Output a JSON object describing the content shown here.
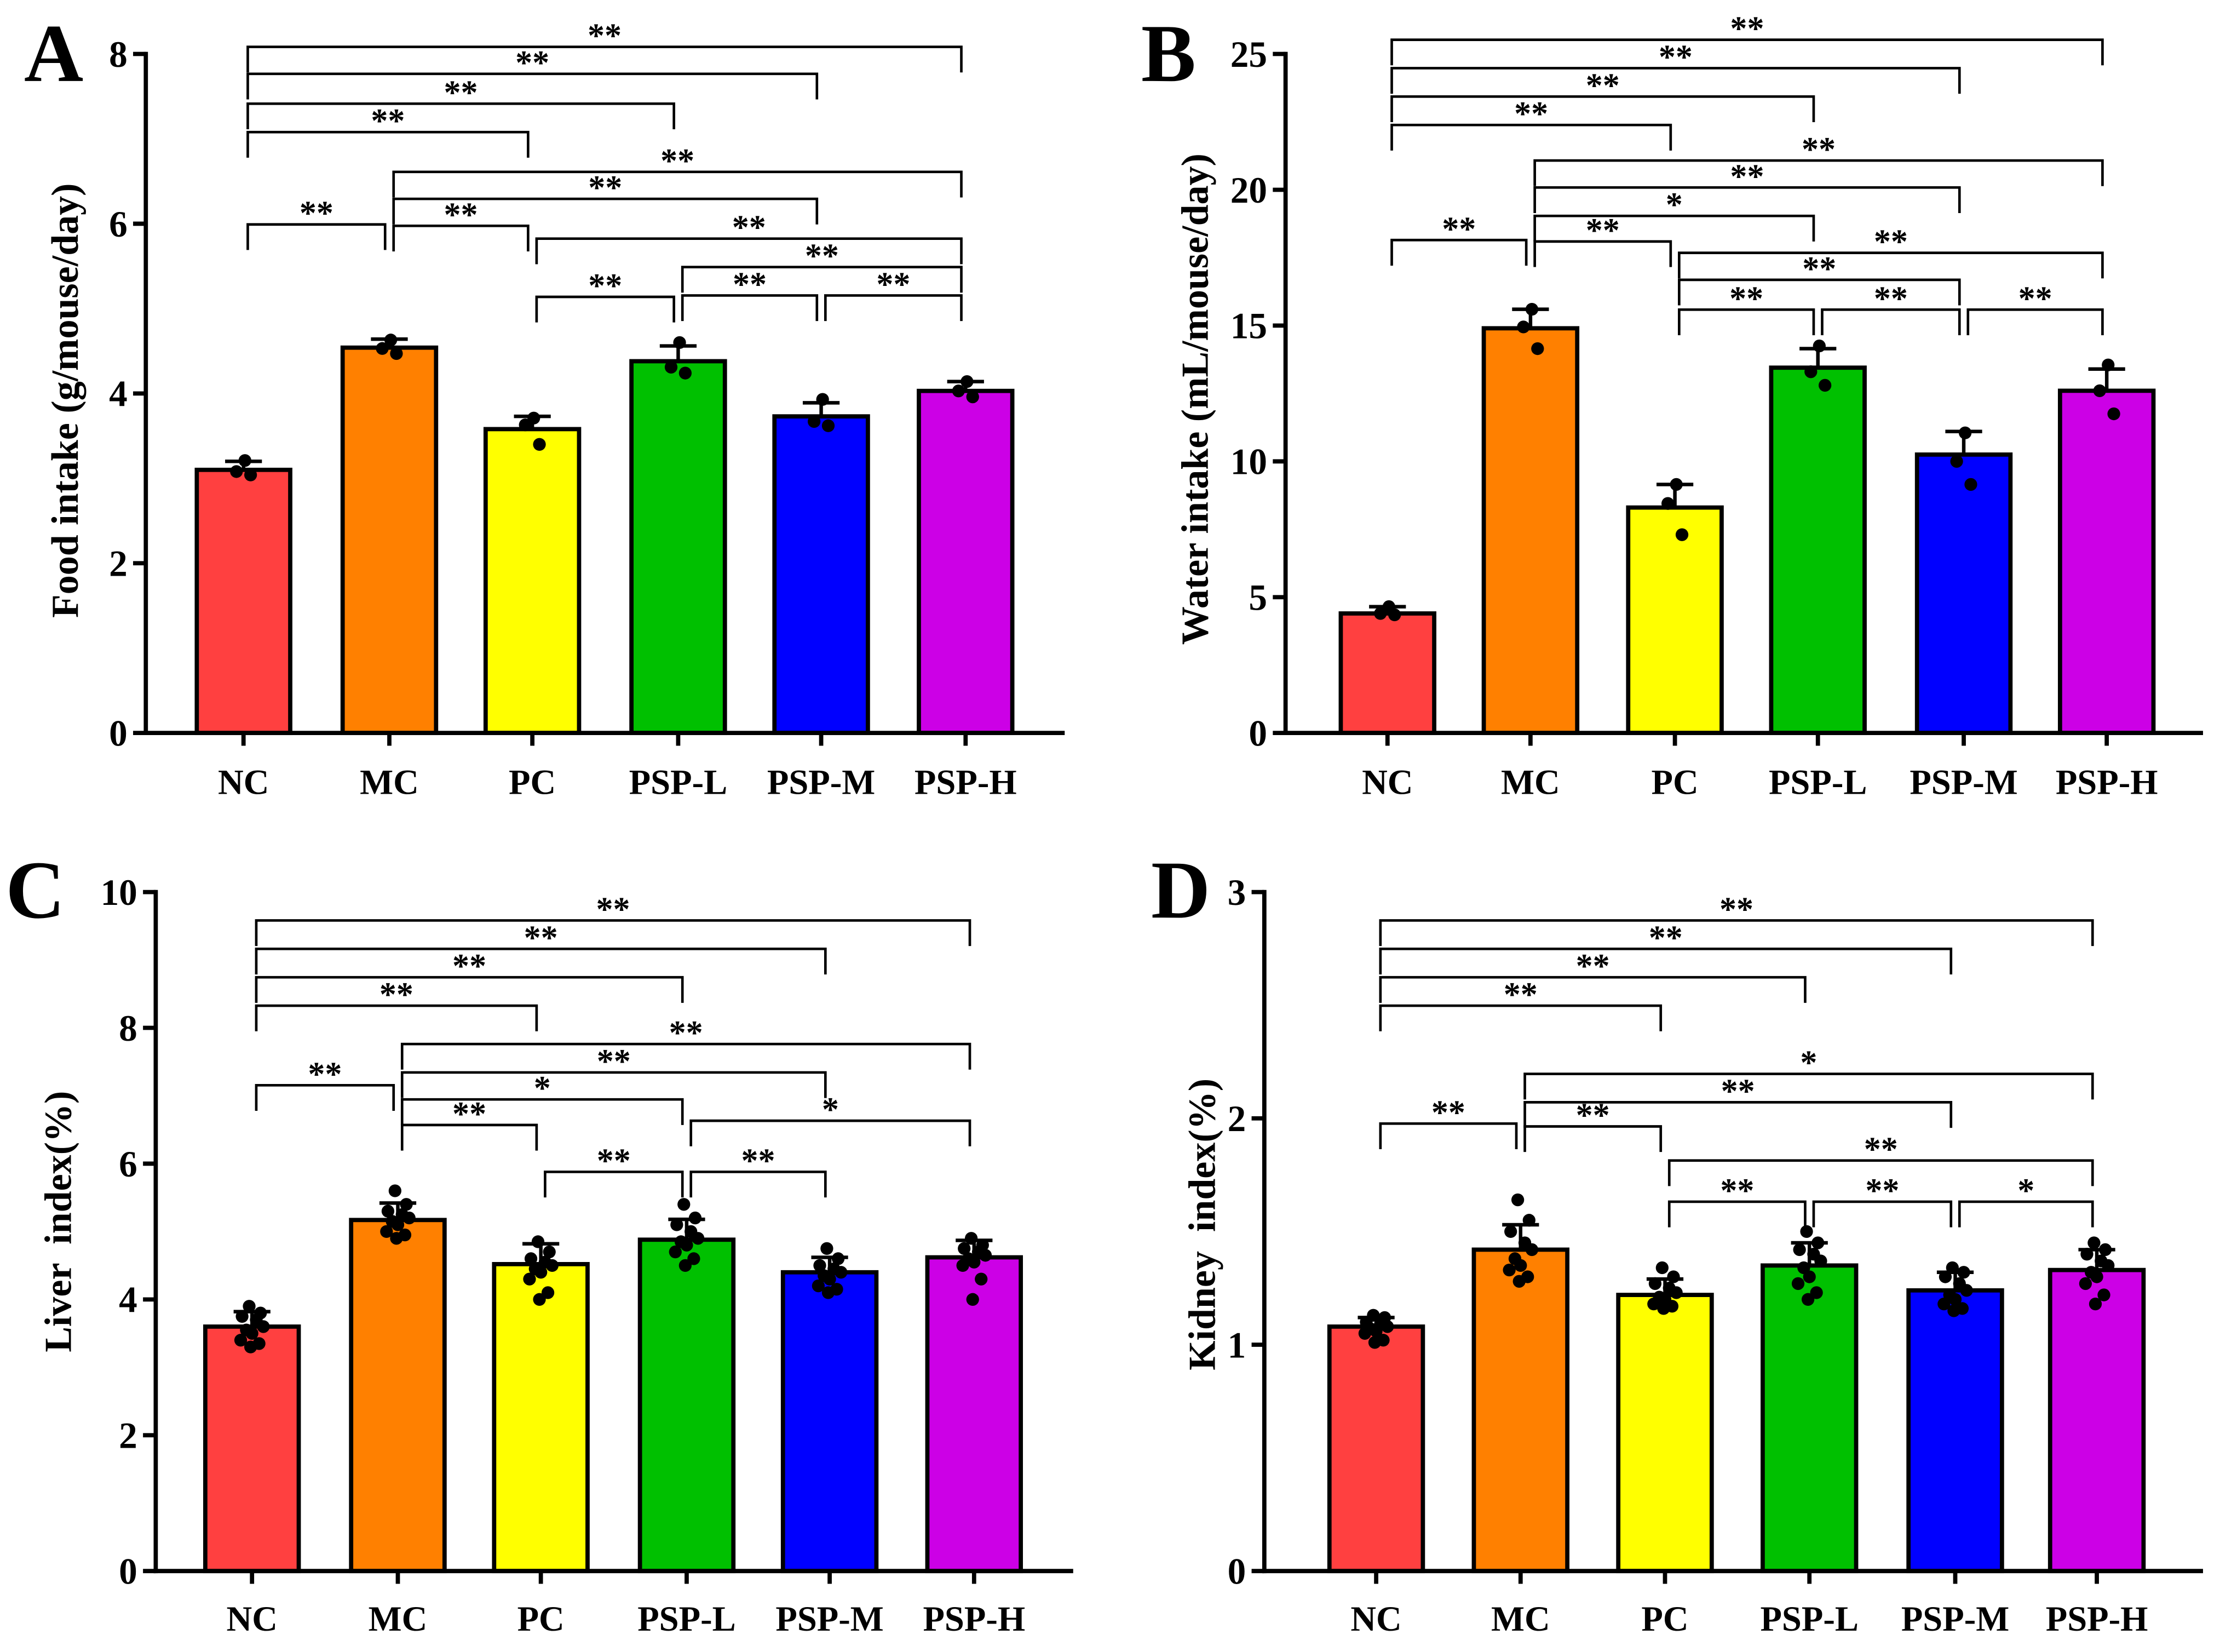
{
  "bar_colors": {
    "NC": "#ff4040",
    "MC": "#ff8000",
    "PC": "#ffff00",
    "PSP-L": "#00c000",
    "PSP-M": "#0000ff",
    "PSP-H": "#cc00e6"
  },
  "chart_data": [
    {
      "panel": "A",
      "type": "bar",
      "ylabel": "Food intake (g/mouse/day)",
      "categories": [
        "NC",
        "MC",
        "PC",
        "PSP-L",
        "PSP-M",
        "PSP-H"
      ],
      "values": [
        3.1,
        4.54,
        3.58,
        4.38,
        3.73,
        4.03
      ],
      "errors": [
        0.1,
        0.1,
        0.15,
        0.18,
        0.16,
        0.11
      ],
      "points": [
        [
          3.21,
          3.08,
          3.04
        ],
        [
          4.63,
          4.53,
          4.47
        ],
        [
          3.71,
          3.63,
          3.4
        ],
        [
          4.6,
          4.31,
          4.24
        ],
        [
          3.93,
          3.67,
          3.62
        ],
        [
          4.14,
          4.03,
          3.96
        ]
      ],
      "ylim": [
        0,
        8
      ],
      "yticks": [
        0,
        2,
        4,
        6,
        8
      ],
      "significance": [
        {
          "from": "NC",
          "to": "PSP-H",
          "label": "**"
        },
        {
          "from": "NC",
          "to": "PSP-M",
          "label": "**"
        },
        {
          "from": "NC",
          "to": "PSP-L",
          "label": "**"
        },
        {
          "from": "NC",
          "to": "PC",
          "label": "**"
        },
        {
          "from": "NC",
          "to": "MC",
          "label": "**"
        },
        {
          "from": "MC",
          "to": "PSP-H",
          "label": "**"
        },
        {
          "from": "MC",
          "to": "PSP-M",
          "label": "**"
        },
        {
          "from": "MC",
          "to": "PC",
          "label": "**"
        },
        {
          "from": "PC",
          "to": "PSP-H",
          "label": "**"
        },
        {
          "from": "PC",
          "to": "PSP-L",
          "label": "**"
        },
        {
          "from": "PSP-L",
          "to": "PSP-H",
          "label": "**"
        },
        {
          "from": "PSP-L",
          "to": "PSP-M",
          "label": "**"
        },
        {
          "from": "PSP-M",
          "to": "PSP-H",
          "label": "**"
        }
      ]
    },
    {
      "panel": "B",
      "type": "bar",
      "ylabel": "Water intake (mL/mouse/day)",
      "categories": [
        "NC",
        "MC",
        "PC",
        "PSP-L",
        "PSP-M",
        "PSP-H"
      ],
      "values": [
        4.4,
        14.9,
        8.3,
        13.45,
        10.25,
        12.6
      ],
      "errors": [
        0.25,
        0.7,
        0.85,
        0.7,
        0.85,
        0.8
      ],
      "points": [
        [
          4.65,
          4.4,
          4.35
        ],
        [
          15.6,
          14.95,
          14.15
        ],
        [
          9.15,
          8.45,
          7.3
        ],
        [
          14.25,
          13.3,
          12.8
        ],
        [
          11.05,
          10.0,
          9.15
        ],
        [
          13.55,
          12.6,
          11.75
        ]
      ],
      "ylim": [
        0,
        25
      ],
      "yticks": [
        0,
        5,
        10,
        15,
        20,
        25
      ],
      "significance": [
        {
          "from": "NC",
          "to": "PSP-H",
          "label": "**"
        },
        {
          "from": "NC",
          "to": "PSP-M",
          "label": "**"
        },
        {
          "from": "NC",
          "to": "PSP-L",
          "label": "**"
        },
        {
          "from": "NC",
          "to": "PC",
          "label": "**"
        },
        {
          "from": "NC",
          "to": "MC",
          "label": "**"
        },
        {
          "from": "MC",
          "to": "PSP-H",
          "label": "**"
        },
        {
          "from": "MC",
          "to": "PSP-M",
          "label": "**"
        },
        {
          "from": "MC",
          "to": "PSP-L",
          "label": "*"
        },
        {
          "from": "MC",
          "to": "PC",
          "label": "**"
        },
        {
          "from": "PC",
          "to": "PSP-H",
          "label": "**"
        },
        {
          "from": "PC",
          "to": "PSP-M",
          "label": "**"
        },
        {
          "from": "PC",
          "to": "PSP-L",
          "label": "**"
        },
        {
          "from": "PSP-L",
          "to": "PSP-M",
          "label": "**"
        },
        {
          "from": "PSP-M",
          "to": "PSP-H",
          "label": "**"
        }
      ]
    },
    {
      "panel": "C",
      "type": "bar",
      "ylabel": "Liver  index(%)",
      "categories": [
        "NC",
        "MC",
        "PC",
        "PSP-L",
        "PSP-M",
        "PSP-H"
      ],
      "values": [
        3.6,
        5.17,
        4.52,
        4.88,
        4.4,
        4.62
      ],
      "errors": [
        0.22,
        0.25,
        0.3,
        0.3,
        0.22,
        0.25
      ],
      "points": [
        [
          3.9,
          3.8,
          3.75,
          3.7,
          3.6,
          3.55,
          3.5,
          3.4,
          3.35,
          3.3
        ],
        [
          5.6,
          5.4,
          5.3,
          5.25,
          5.2,
          5.15,
          5.1,
          5.0,
          4.95,
          4.9
        ],
        [
          4.85,
          4.7,
          4.6,
          4.55,
          4.5,
          4.45,
          4.4,
          4.3,
          4.1,
          4.0
        ],
        [
          5.4,
          5.2,
          5.1,
          5.0,
          4.9,
          4.85,
          4.8,
          4.7,
          4.6,
          4.5
        ],
        [
          4.75,
          4.6,
          4.5,
          4.45,
          4.4,
          4.35,
          4.3,
          4.2,
          4.15,
          4.1
        ],
        [
          4.9,
          4.8,
          4.75,
          4.7,
          4.65,
          4.6,
          4.55,
          4.5,
          4.3,
          4.0
        ]
      ],
      "ylim": [
        0,
        10
      ],
      "yticks": [
        0,
        2,
        4,
        6,
        8,
        10
      ],
      "significance": [
        {
          "from": "NC",
          "to": "PSP-H",
          "label": "**"
        },
        {
          "from": "NC",
          "to": "PSP-M",
          "label": "**"
        },
        {
          "from": "NC",
          "to": "PSP-L",
          "label": "**"
        },
        {
          "from": "NC",
          "to": "PC",
          "label": "**"
        },
        {
          "from": "NC",
          "to": "MC",
          "label": "**"
        },
        {
          "from": "MC",
          "to": "PSP-H",
          "label": "**"
        },
        {
          "from": "MC",
          "to": "PSP-M",
          "label": "**"
        },
        {
          "from": "MC",
          "to": "PSP-L",
          "label": "*"
        },
        {
          "from": "MC",
          "to": "PC",
          "label": "**"
        },
        {
          "from": "PC",
          "to": "PSP-L",
          "label": "**"
        },
        {
          "from": "PSP-L",
          "to": "PSP-H",
          "label": "*"
        },
        {
          "from": "PSP-L",
          "to": "PSP-M",
          "label": "**"
        }
      ]
    },
    {
      "panel": "D",
      "type": "bar",
      "ylabel": "Kidney  index(%)",
      "categories": [
        "NC",
        "MC",
        "PC",
        "PSP-L",
        "PSP-M",
        "PSP-H"
      ],
      "values": [
        1.08,
        1.42,
        1.22,
        1.35,
        1.24,
        1.33
      ],
      "errors": [
        0.04,
        0.11,
        0.07,
        0.1,
        0.08,
        0.09
      ],
      "points": [
        [
          1.13,
          1.12,
          1.1,
          1.09,
          1.08,
          1.07,
          1.06,
          1.05,
          1.02,
          1.01
        ],
        [
          1.64,
          1.55,
          1.5,
          1.45,
          1.42,
          1.38,
          1.35,
          1.33,
          1.3,
          1.28
        ],
        [
          1.34,
          1.3,
          1.27,
          1.25,
          1.23,
          1.21,
          1.2,
          1.18,
          1.17,
          1.16
        ],
        [
          1.5,
          1.45,
          1.42,
          1.4,
          1.37,
          1.34,
          1.3,
          1.27,
          1.23,
          1.2
        ],
        [
          1.34,
          1.32,
          1.3,
          1.27,
          1.24,
          1.22,
          1.2,
          1.18,
          1.16,
          1.15
        ],
        [
          1.45,
          1.42,
          1.4,
          1.37,
          1.35,
          1.32,
          1.3,
          1.27,
          1.22,
          1.18
        ]
      ],
      "ylim": [
        0,
        3
      ],
      "yticks": [
        0,
        1,
        2,
        3
      ],
      "significance": [
        {
          "from": "NC",
          "to": "PSP-H",
          "label": "**"
        },
        {
          "from": "NC",
          "to": "PSP-M",
          "label": "**"
        },
        {
          "from": "NC",
          "to": "PSP-L",
          "label": "**"
        },
        {
          "from": "NC",
          "to": "PC",
          "label": "**"
        },
        {
          "from": "NC",
          "to": "MC",
          "label": "**"
        },
        {
          "from": "MC",
          "to": "PSP-H",
          "label": "*"
        },
        {
          "from": "MC",
          "to": "PSP-M",
          "label": "**"
        },
        {
          "from": "MC",
          "to": "PC",
          "label": "**"
        },
        {
          "from": "PC",
          "to": "PSP-H",
          "label": "**"
        },
        {
          "from": "PC",
          "to": "PSP-L",
          "label": "**"
        },
        {
          "from": "PSP-L",
          "to": "PSP-M",
          "label": "**"
        },
        {
          "from": "PSP-M",
          "to": "PSP-H",
          "label": "*"
        }
      ]
    }
  ]
}
